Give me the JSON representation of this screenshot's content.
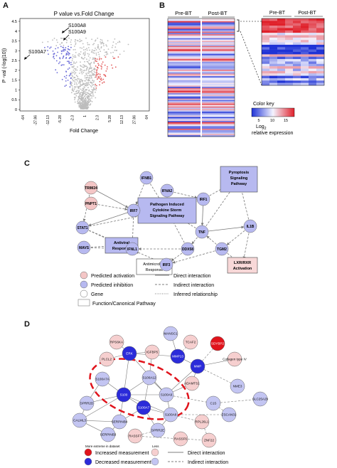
{
  "panels": {
    "A": "A",
    "B": "B",
    "C": "C",
    "D": "D"
  },
  "volcano": {
    "title": "P value vs.Fold Change",
    "xlabel": "Fold Change",
    "ylabel": "P -val (-log(10))",
    "y_ticks": [
      "4.5",
      "4",
      "3.5",
      "3",
      "2.5",
      "2",
      "1.5",
      "1",
      "0.5",
      "0"
    ],
    "x_ticks": [
      "-64",
      "-27.86",
      "-12.13",
      "-5.28",
      "-2.3",
      "1",
      "2.3",
      "5.28",
      "12.13",
      "27.86",
      "64"
    ],
    "labels": [
      "S100A8",
      "S100A9",
      "S100A7"
    ]
  },
  "heatmap": {
    "pre": "Pre-BT",
    "post": "Post-BT",
    "zoom_pre": "Pre-BT",
    "zoom_post": "Post-BT",
    "color_key_title": "Color key",
    "color_key_ticks": [
      "5",
      "10",
      "15"
    ],
    "log_label": "Log",
    "log_sub": "2",
    "relative": "relative expression",
    "colors": {
      "low": "#1f33d6",
      "mid": "#f4f4ff",
      "high": "#e0202a"
    }
  },
  "network_c": {
    "nodes": {
      "trim24": "TRIM24",
      "ifnb1": "IFNB1",
      "ifna2": "IFNA2",
      "pnpt1": "PNPT1",
      "irf7": "IRF7",
      "irf1": "IRF1",
      "stat1": "STAT1",
      "tnf": "TNF",
      "il1b": "IL1B",
      "mavs": "MAVS",
      "ifnl1": "IFNL1",
      "ddx58": "DDX58",
      "tgm2": "TGM2",
      "irf3": "IRF3"
    },
    "boxes": {
      "pyroptosis": "Pyroptosis Signaling Pathway",
      "pathogen": "Pathogen Induced Cytokine Storm Signaling Pathway",
      "antiviral": "Antiviral Response",
      "antimicrobial": "Antimicrobial Response",
      "lxr": "LXR/RXR Activation"
    },
    "legend": {
      "pred_activation": "Predicted activation",
      "pred_inhibition": "Predicted inhibition",
      "gene": "Gene",
      "function": "Function/Canonical Pathway",
      "direct": "Direct interaction",
      "indirect": "Indirect interaction",
      "inferred": "Inferred relationship"
    },
    "colors": {
      "activation": "#f4c6c6",
      "inhibition": "#b7b9f0",
      "lxr_fill": "#f8d8d8"
    }
  },
  "network_d": {
    "nodes": {
      "mansc1": "MANSC1",
      "rps6ka": "RPS6KA",
      "tcaf2": "TCAF2",
      "sdybp": "SDYBP2",
      "igfbp5": "IGFBP5",
      "erk": "ERK",
      "mmp13": "MMP13",
      "collagen": "Collagen type IV",
      "plcl2": "PLCL2",
      "mmp": "MMP",
      "adamts1": "ADAMTS1",
      "nme3": "NME3",
      "s100a7a": "S100A7A",
      "s100a12": "S100A12",
      "slc25a29": "SLC25A29",
      "s100": "S100",
      "s100a9": "S100A9",
      "c1s": "C1S",
      "sprr2d": "SPRR2D",
      "s100a7": "S100A7",
      "s100a8": "S100A8",
      "zscan31": "ZSCAN31",
      "serpinb4": "SERPINB4",
      "calml3": "CALML3",
      "sprr2e": "SPRR2E",
      "rpl26l1": "RPL26L1",
      "serpinb3": "SERPINB3",
      "rassf7": "RASSF7",
      "rassf6": "RASSF6",
      "znf22": "ZNF22"
    },
    "legend": {
      "more_extreme": "More extreme in dataset",
      "less": "Less",
      "increased": "Increased measurement",
      "decreased": "Decreased measurement",
      "direct": "Direct interaction",
      "indirect": "Indirect interaction"
    },
    "colors": {
      "strong_red": "#e0141c",
      "strong_blue": "#2b2bd9",
      "light_red": "#f6cfcf",
      "light_blue": "#c3c5f2",
      "ring": "#e0141c"
    }
  }
}
